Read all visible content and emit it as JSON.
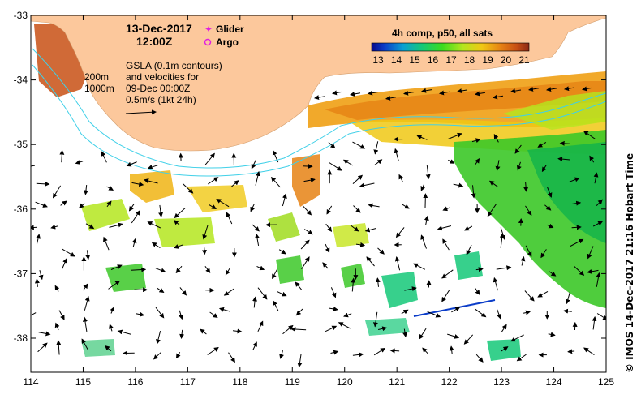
{
  "header": {
    "date": "13-Dec-2017",
    "time": "12:00Z"
  },
  "legend_markers": {
    "glider": "Glider",
    "argo": "Argo",
    "glider_color": "#e020e0",
    "argo_color": "#e020e0"
  },
  "annotations": {
    "contour_200": "200m",
    "contour_1000": "1000m",
    "gsla_line1": "GSLA (0.1m contours)",
    "gsla_line2": "and velocities for",
    "gsla_line3": "09-Dec 00:00Z",
    "gsla_line4": "0.5m/s (1kt 24h)"
  },
  "colorbar": {
    "title": "4h comp, p50, all sats",
    "ticks": [
      "13",
      "14",
      "15",
      "16",
      "17",
      "18",
      "19",
      "20",
      "21"
    ],
    "colors": [
      "#08088a",
      "#0a3cc8",
      "#0aa0d2",
      "#14c878",
      "#3cdc1e",
      "#b4e61e",
      "#f0c814",
      "#e68214",
      "#c85014",
      "#8c2814"
    ]
  },
  "axes": {
    "x_ticks": [
      "114",
      "115",
      "116",
      "117",
      "118",
      "119",
      "120",
      "121",
      "122",
      "123",
      "124",
      "125"
    ],
    "y_ticks": [
      "-33",
      "-34",
      "-35",
      "-36",
      "-37",
      "-38"
    ]
  },
  "credit": "© IMOS 14-Dec-2017 21:16 Hobart Time",
  "colors": {
    "land": "#fcc89c",
    "frame": "#000000",
    "contour": "#40d0e8",
    "arrow": "#000000"
  }
}
